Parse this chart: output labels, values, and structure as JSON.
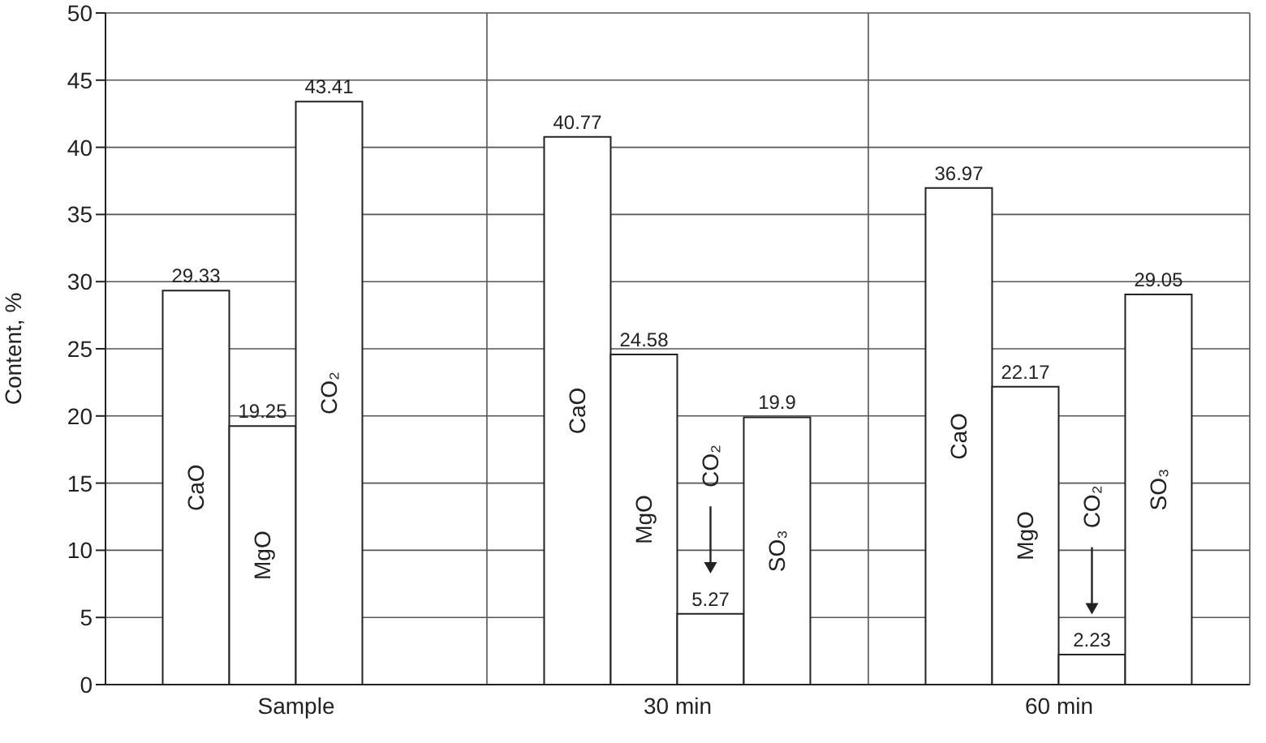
{
  "chart_data": {
    "type": "bar",
    "ylabel": "Content, %",
    "categories": [
      "Sample",
      "30 min",
      "60 min"
    ],
    "series": [
      {
        "name": "CaO",
        "color": "#ffffff",
        "values": [
          29.33,
          40.77,
          36.97
        ]
      },
      {
        "name": "MgO",
        "color": "#ffffff",
        "values": [
          19.25,
          24.58,
          22.17
        ]
      },
      {
        "name": "CO₂",
        "color": "#ffffff",
        "values": [
          43.41,
          5.27,
          2.23
        ]
      },
      {
        "name": "SO₃",
        "color": "#ffffff",
        "values": [
          null,
          19.9,
          29.05
        ]
      }
    ],
    "ylim": [
      0,
      50
    ],
    "yticks": [
      0,
      5,
      10,
      15,
      20,
      25,
      30,
      35,
      40,
      45,
      50
    ],
    "grid": true,
    "data_labels": true
  }
}
